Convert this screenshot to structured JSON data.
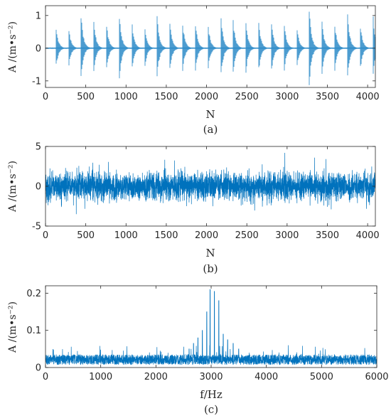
{
  "chart_data": [
    {
      "type": "line",
      "caption": "(a)",
      "xlabel": "N",
      "ylabel": "A /(m•s⁻²)",
      "xlim": [
        0,
        4096
      ],
      "ylim": [
        -1.2,
        1.3
      ],
      "xticks": [
        0,
        500,
        1000,
        1500,
        2000,
        2500,
        3000,
        3500,
        4000
      ],
      "yticks": [
        -1,
        0,
        1
      ],
      "signal": {
        "kind": "periodic impulses with exponential decay",
        "impulse_count": 26,
        "first_impulse_x": 125,
        "impulse_period": 157.5,
        "decay_length": 90,
        "peak_amplitudes": [
          0.85,
          0.82,
          1.15,
          0.95,
          0.9,
          1.3,
          0.95,
          0.88,
          1.05,
          0.9,
          0.92,
          0.95,
          0.9,
          1.3,
          0.92,
          0.88,
          0.9,
          1.0,
          0.95,
          0.85,
          1.3,
          0.92,
          0.88,
          1.3,
          0.9,
          1.25
        ],
        "color": "#0072BD"
      }
    },
    {
      "type": "line",
      "caption": "(b)",
      "xlabel": "N",
      "ylabel": "A /(m•s⁻²)",
      "xlim": [
        0,
        4096
      ],
      "ylim": [
        -5,
        5
      ],
      "xticks": [
        0,
        500,
        1000,
        1500,
        2000,
        2500,
        3000,
        3500,
        4000
      ],
      "yticks": [
        -5,
        0,
        5
      ],
      "signal": {
        "kind": "noisy signal",
        "sample_count": 4096,
        "std": 0.85,
        "min": -3.5,
        "max": 4.2,
        "color": "#0072BD"
      }
    },
    {
      "type": "line",
      "caption": "(c)",
      "xlabel": "f/Hz",
      "ylabel": "A /(m•s⁻²)",
      "xlim": [
        0,
        6000
      ],
      "ylim": [
        0,
        0.22
      ],
      "xticks": [
        0,
        1000,
        2000,
        3000,
        4000,
        5000,
        6000
      ],
      "yticks": [
        0,
        0.1,
        0.2
      ],
      "signal": {
        "kind": "amplitude spectrum",
        "noise_floor": 0.025,
        "noise_max": 0.06,
        "peaks": [
          {
            "f": 2600,
            "a": 0.05
          },
          {
            "f": 2680,
            "a": 0.065
          },
          {
            "f": 2760,
            "a": 0.08
          },
          {
            "f": 2840,
            "a": 0.1
          },
          {
            "f": 2920,
            "a": 0.15
          },
          {
            "f": 2980,
            "a": 0.21
          },
          {
            "f": 3060,
            "a": 0.205
          },
          {
            "f": 3140,
            "a": 0.18
          },
          {
            "f": 3220,
            "a": 0.09
          },
          {
            "f": 3300,
            "a": 0.075
          },
          {
            "f": 3400,
            "a": 0.065
          },
          {
            "f": 3500,
            "a": 0.05
          }
        ],
        "color": "#0072BD"
      }
    }
  ]
}
